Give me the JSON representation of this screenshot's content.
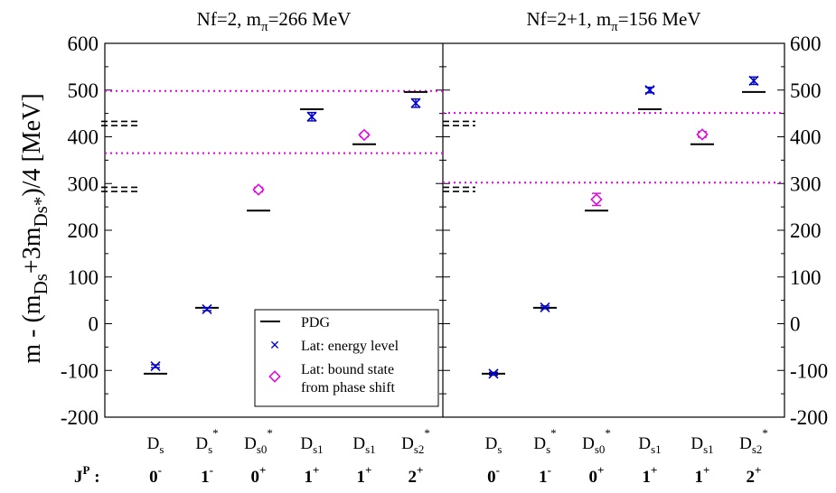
{
  "chart_data": {
    "type": "scatter",
    "ylabel_main": "m - (m",
    "ylabel_sub1": "Ds",
    "ylabel_mid": "+3m",
    "ylabel_sub2": "Ds*",
    "ylabel_end": ")/4  [MeV]",
    "ylim": [
      -200,
      600
    ],
    "yticks": [
      "-200",
      "-100",
      "0",
      "100",
      "200",
      "300",
      "400",
      "500",
      "600"
    ],
    "jp_label": {
      "base": "J",
      "sup": "P",
      "tail": " :"
    },
    "states": [
      {
        "base": "D",
        "sub": "s",
        "star": "",
        "jp": "0",
        "sign": "-"
      },
      {
        "base": "D",
        "sub": "s",
        "star": "*",
        "jp": "1",
        "sign": "-"
      },
      {
        "base": "D",
        "sub": "s0",
        "star": "*",
        "jp": "0",
        "sign": "+"
      },
      {
        "base": "D",
        "sub": "s1",
        "star": "",
        "jp": "1",
        "sign": "+"
      },
      {
        "base": "D",
        "sub": "s1",
        "star": "",
        "jp": "1",
        "sign": "+"
      },
      {
        "base": "D",
        "sub": "s2",
        "star": "*",
        "jp": "2",
        "sign": "+"
      }
    ],
    "legend": {
      "pdg": "PDG",
      "energy": "Lat: energy level",
      "bound_line1": "Lat: bound state",
      "bound_line2": "from phase shift"
    },
    "panels": [
      {
        "title": "Nf=2, m",
        "title_sub": "π",
        "title_tail": "=266 MeV",
        "pdg": [
          -107,
          34,
          242,
          459,
          384,
          496
        ],
        "energy_levels": [
          {
            "state": 0,
            "value": -91,
            "err": 3
          },
          {
            "state": 1,
            "value": 31,
            "err": 3
          },
          {
            "state": 3,
            "value": 443,
            "err": 9
          },
          {
            "state": 5,
            "value": 472,
            "err": 9
          }
        ],
        "bound_states": [
          {
            "state": 2,
            "value": 287,
            "err": 5
          },
          {
            "state": 4,
            "value": 404,
            "err": 4
          }
        ],
        "thresholds_magenta": [
          498,
          365
        ],
        "thresholds_black_dashed": [
          [
            433,
            424
          ],
          [
            292,
            283
          ]
        ]
      },
      {
        "title": "Nf=2+1, m",
        "title_sub": "π",
        "title_tail": "=156 MeV",
        "pdg": [
          -107,
          34,
          242,
          459,
          384,
          496
        ],
        "energy_levels": [
          {
            "state": 0,
            "value": -107,
            "err": 3
          },
          {
            "state": 1,
            "value": 35,
            "err": 3
          },
          {
            "state": 3,
            "value": 500,
            "err": 6
          },
          {
            "state": 5,
            "value": 520,
            "err": 8
          }
        ],
        "bound_states": [
          {
            "state": 2,
            "value": 266,
            "err": 13
          },
          {
            "state": 4,
            "value": 405,
            "err": 6
          }
        ],
        "thresholds_magenta": [
          451,
          302
        ],
        "thresholds_black_dashed": [
          [
            433,
            424
          ],
          [
            292,
            283
          ]
        ]
      }
    ],
    "colors": {
      "energy": "#0000cc",
      "bound": "#e000e0",
      "pdg": "#000000"
    }
  }
}
